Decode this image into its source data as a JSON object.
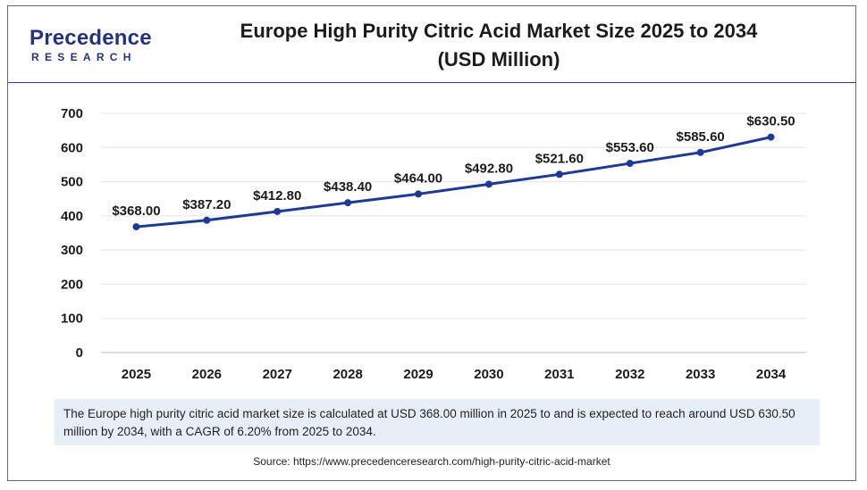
{
  "brand": {
    "logo_top": "Precedence",
    "logo_bottom": "RESEARCH"
  },
  "header": {
    "title_line1": "Europe High Purity Citric Acid Market Size 2025 to 2034",
    "title_line2": "(USD Million)"
  },
  "description": "The Europe high purity citric acid market size is calculated at USD 368.00 million in 2025 to and is expected to reach around USD 630.50 million by 2034, with a CAGR of 6.20% from 2025 to 2034.",
  "source": "Source: https://www.precedenceresearch.com/high-purity-citric-acid-market",
  "colors": {
    "line": "#1f3a93",
    "brand": "#24337a",
    "desc_bg": "#e8eef7"
  },
  "chart_data": {
    "type": "line",
    "title": "Europe High Purity Citric Acid Market Size 2025 to 2034 (USD Million)",
    "xlabel": "",
    "ylabel": "",
    "categories": [
      "2025",
      "2026",
      "2027",
      "2028",
      "2029",
      "2030",
      "2031",
      "2032",
      "2033",
      "2034"
    ],
    "values": [
      368.0,
      387.2,
      412.8,
      438.4,
      464.0,
      492.8,
      521.6,
      553.6,
      585.6,
      630.5
    ],
    "data_labels": [
      "$368.00",
      "$387.20",
      "$412.80",
      "$438.40",
      "$464.00",
      "$492.80",
      "$521.60",
      "$553.60",
      "$585.60",
      "$630.50"
    ],
    "ylim": [
      0,
      700
    ],
    "yticks": [
      0,
      100,
      200,
      300,
      400,
      500,
      600,
      700
    ],
    "grid": true,
    "legend": "none"
  }
}
